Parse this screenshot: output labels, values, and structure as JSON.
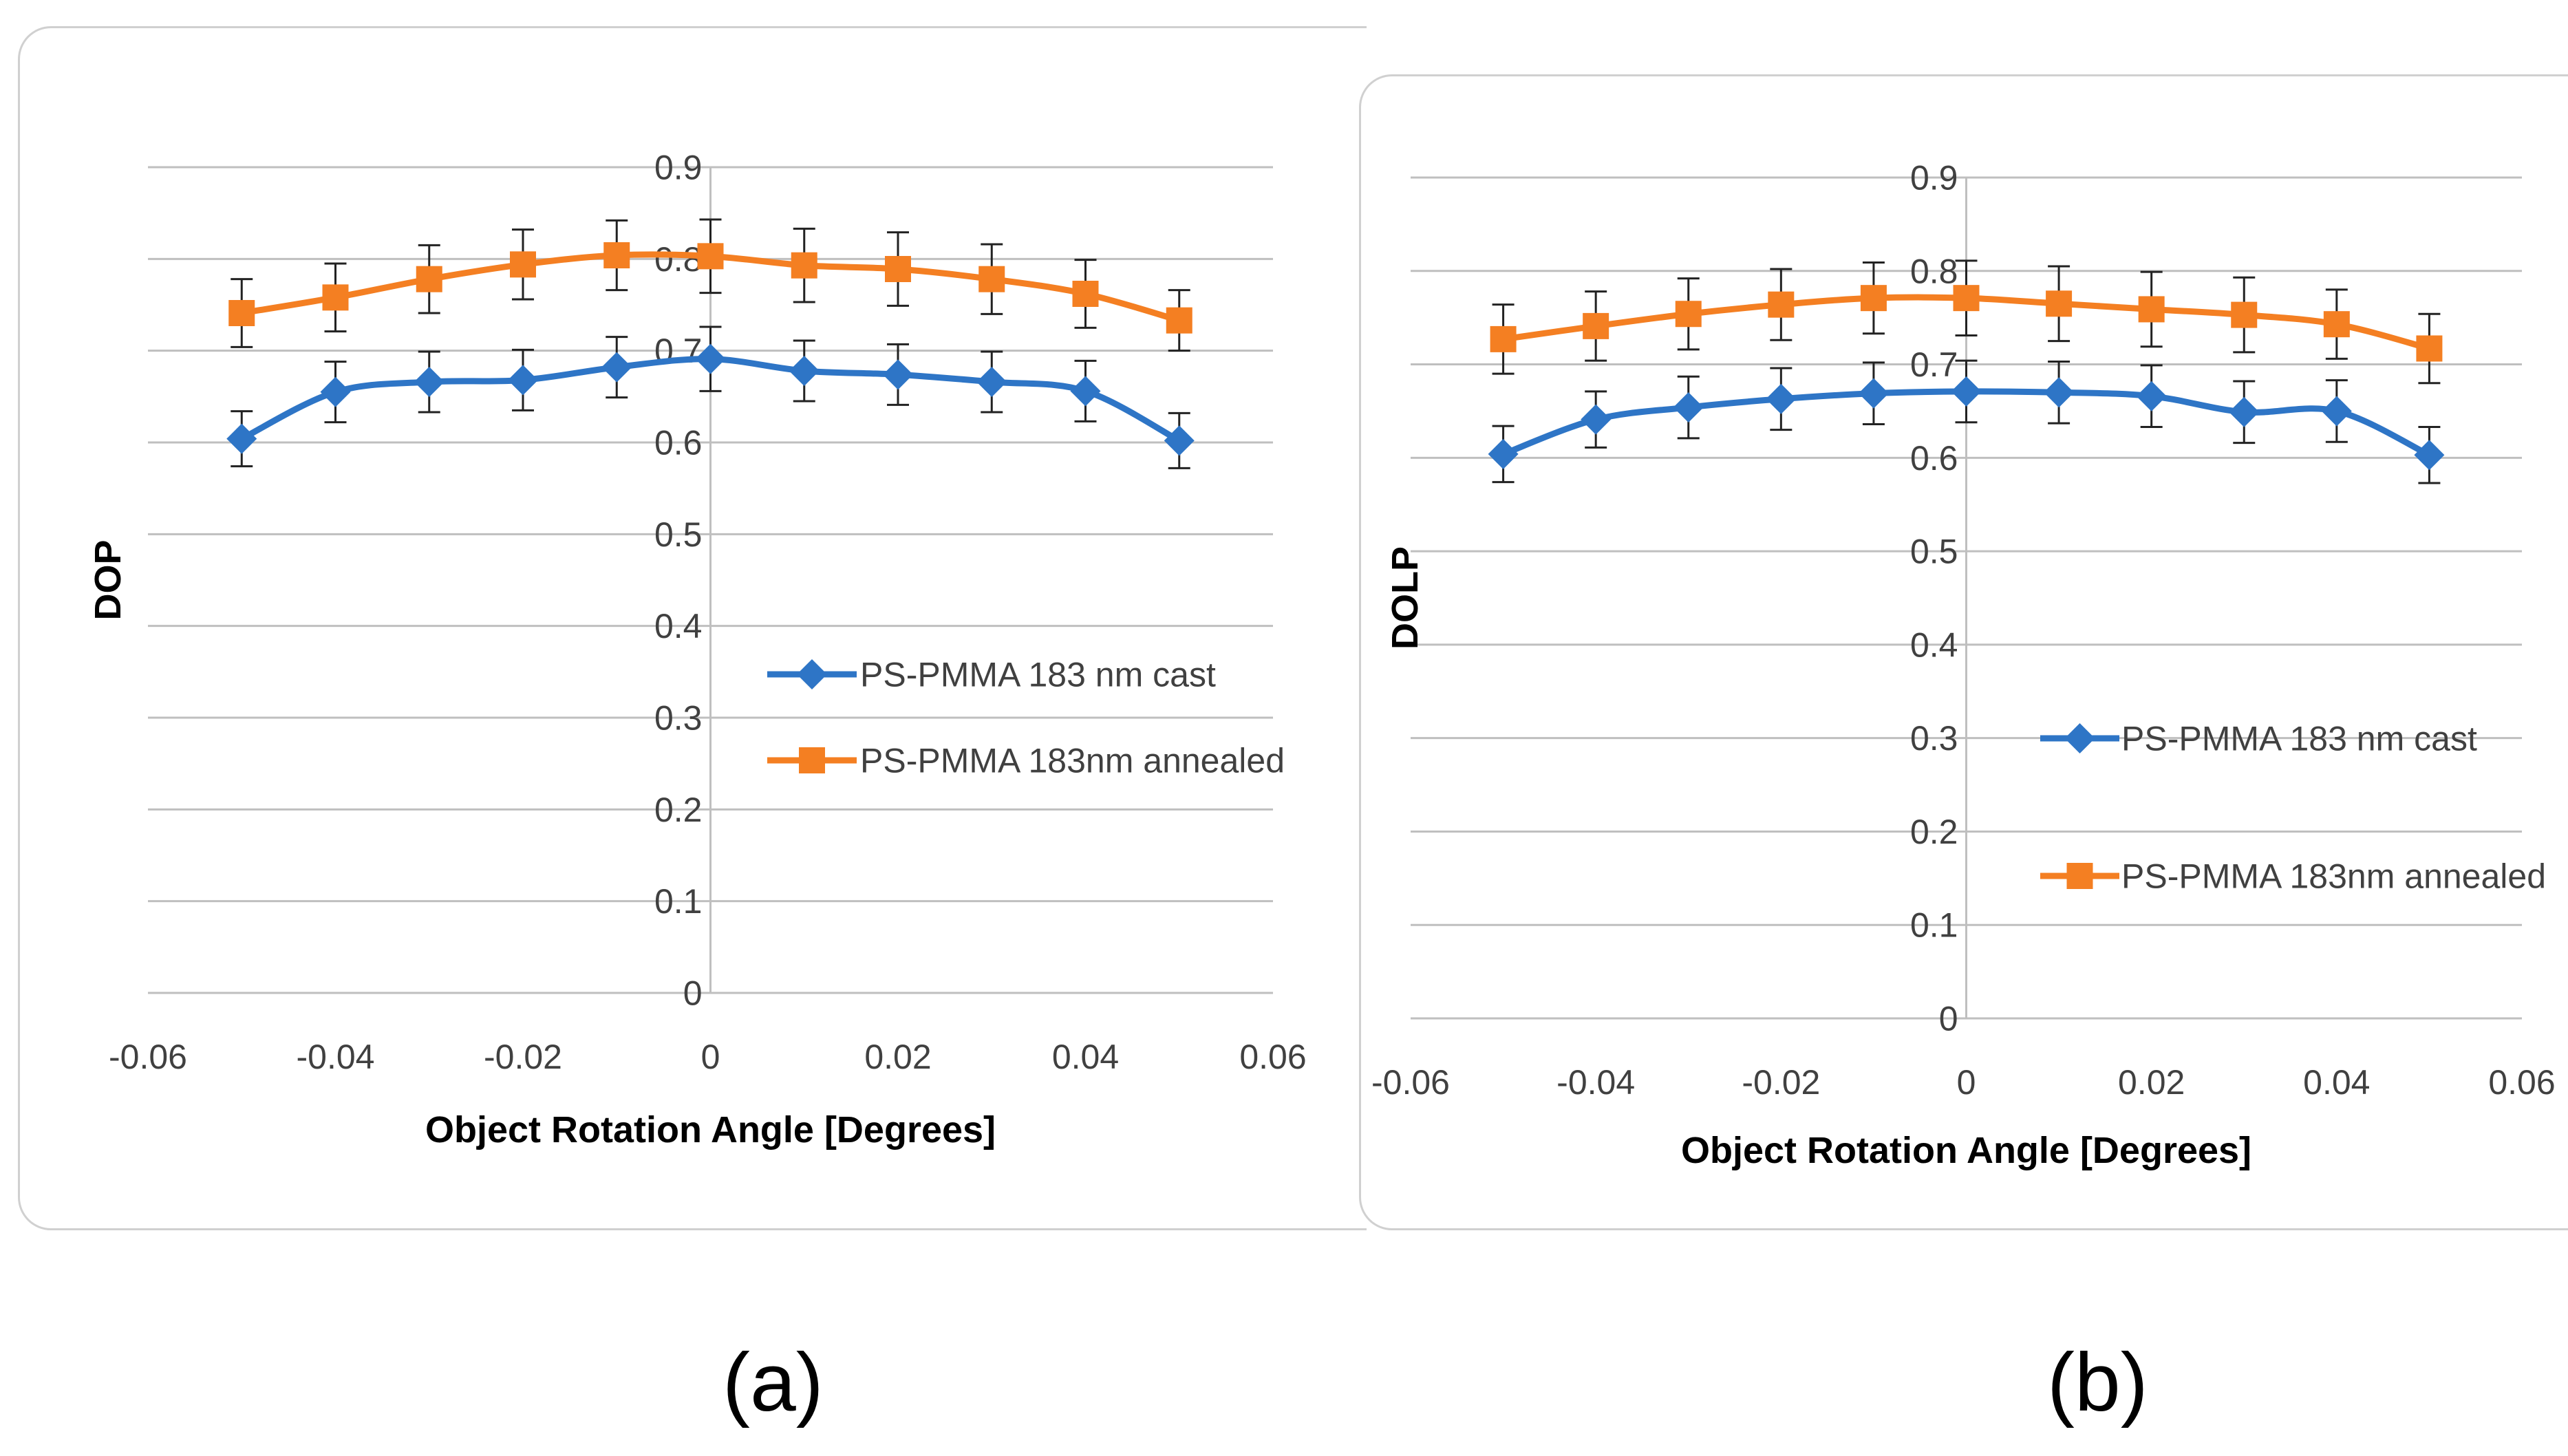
{
  "colors": {
    "cast": "#2e75c6",
    "annealed": "#f47f22",
    "grid": "#bfbfbf",
    "errorbar": "#222222",
    "tick": "#404040"
  },
  "chart_data": [
    {
      "panel": "(a)",
      "type": "line",
      "title": "",
      "xlabel": "Object Rotation Angle [Degrees]",
      "ylabel": "DOP",
      "xlim": [
        -0.06,
        0.06
      ],
      "ylim": [
        0,
        0.9
      ],
      "xticks": [
        "-0.06",
        "-0.04",
        "-0.02",
        "0",
        "0.02",
        "0.04",
        "0.06"
      ],
      "yticks": [
        "0",
        "0.1",
        "0.2",
        "0.3",
        "0.4",
        "0.5",
        "0.6",
        "0.7",
        "0.8",
        "0.9"
      ],
      "grid": true,
      "legend_position": "center-right",
      "x": [
        -0.05,
        -0.04,
        -0.03,
        -0.02,
        -0.01,
        0,
        0.01,
        0.02,
        0.03,
        0.04,
        0.05
      ],
      "series": [
        {
          "name": "PS-PMMA 183 nm cast",
          "marker": "diamond",
          "color_key": "cast",
          "values": [
            0.604,
            0.655,
            0.666,
            0.668,
            0.682,
            0.691,
            0.678,
            0.674,
            0.666,
            0.656,
            0.602
          ],
          "error": [
            0.03,
            0.033,
            0.033,
            0.033,
            0.033,
            0.035,
            0.033,
            0.033,
            0.033,
            0.033,
            0.03
          ]
        },
        {
          "name": "PS-PMMA 183nm annealed",
          "marker": "square",
          "color_key": "annealed",
          "values": [
            0.741,
            0.758,
            0.778,
            0.794,
            0.804,
            0.803,
            0.793,
            0.789,
            0.778,
            0.762,
            0.733
          ],
          "error": [
            0.037,
            0.037,
            0.037,
            0.038,
            0.038,
            0.04,
            0.04,
            0.04,
            0.038,
            0.037,
            0.033
          ]
        }
      ]
    },
    {
      "panel": "(b)",
      "type": "line",
      "title": "",
      "xlabel": "Object Rotation Angle [Degrees]",
      "ylabel": "DOLP",
      "xlim": [
        -0.06,
        0.06
      ],
      "ylim": [
        0,
        0.9
      ],
      "xticks": [
        "-0.06",
        "-0.04",
        "-0.02",
        "0",
        "0.02",
        "0.04",
        "0.06"
      ],
      "yticks": [
        "0",
        "0.1",
        "0.2",
        "0.3",
        "0.4",
        "0.5",
        "0.6",
        "0.7",
        "0.8",
        "0.9"
      ],
      "grid": true,
      "legend_position": "center-right",
      "x": [
        -0.05,
        -0.04,
        -0.03,
        -0.02,
        -0.01,
        0,
        0.01,
        0.02,
        0.03,
        0.04,
        0.05
      ],
      "series": [
        {
          "name": "PS-PMMA 183 nm cast",
          "marker": "diamond",
          "color_key": "cast",
          "values": [
            0.604,
            0.641,
            0.654,
            0.663,
            0.669,
            0.671,
            0.67,
            0.666,
            0.649,
            0.65,
            0.603
          ],
          "error": [
            0.03,
            0.03,
            0.033,
            0.033,
            0.033,
            0.033,
            0.033,
            0.033,
            0.033,
            0.033,
            0.03
          ]
        },
        {
          "name": "PS-PMMA 183nm annealed",
          "marker": "square",
          "color_key": "annealed",
          "values": [
            0.727,
            0.741,
            0.754,
            0.764,
            0.771,
            0.771,
            0.765,
            0.759,
            0.753,
            0.743,
            0.717
          ],
          "error": [
            0.037,
            0.037,
            0.038,
            0.038,
            0.038,
            0.04,
            0.04,
            0.04,
            0.04,
            0.037,
            0.037
          ]
        }
      ]
    }
  ]
}
